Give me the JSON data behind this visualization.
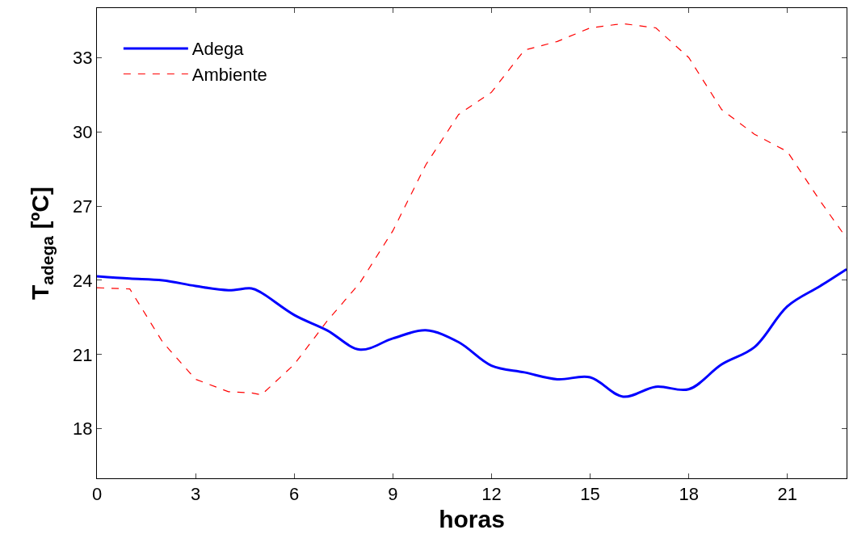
{
  "chart_data": {
    "type": "line",
    "xlabel": "horas",
    "ylabel": "T$_{adega}$ [ºC]",
    "xlim": [
      0,
      22.8
    ],
    "ylim": [
      16,
      35
    ],
    "xticks": [
      0,
      3,
      6,
      9,
      12,
      15,
      18,
      21
    ],
    "yticks": [
      18,
      21,
      24,
      27,
      30,
      33
    ],
    "legend": "top left",
    "x": [
      0,
      1,
      2,
      3,
      4,
      4.7,
      5,
      6,
      7,
      8,
      9,
      10,
      11,
      12,
      13,
      14,
      15,
      16,
      17,
      18,
      19,
      20,
      21,
      22,
      22.8
    ],
    "series": [
      {
        "name": "Adega",
        "color": "#0000ff",
        "line_style": "solid",
        "values": [
          24.16,
          24.07,
          24.0,
          23.77,
          23.6,
          23.67,
          23.5,
          22.6,
          21.98,
          21.2,
          21.65,
          21.98,
          21.5,
          20.55,
          20.28,
          20.0,
          20.08,
          19.3,
          19.7,
          19.6,
          20.6,
          21.3,
          22.95,
          23.77,
          24.45
        ]
      },
      {
        "name": "Ambiente",
        "color": "#ff0000",
        "line_style": "dashed",
        "values": [
          23.7,
          23.65,
          21.5,
          20.0,
          19.5,
          19.45,
          19.37,
          20.6,
          22.35,
          23.9,
          26.0,
          28.66,
          30.7,
          31.6,
          33.3,
          33.65,
          34.2,
          34.37,
          34.2,
          33.0,
          30.9,
          29.9,
          29.2,
          27.2,
          25.7
        ]
      }
    ]
  }
}
